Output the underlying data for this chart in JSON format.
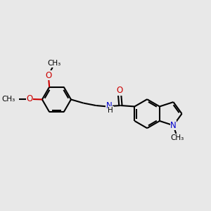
{
  "background_color": "#e8e8e8",
  "bond_color": "#000000",
  "bond_width": 1.5,
  "N_color": "#0000cd",
  "O_color": "#cc0000",
  "font_size": 8.5,
  "fig_size": [
    3.0,
    3.0
  ],
  "dpi": 100,
  "xlim": [
    0,
    10
  ],
  "ylim": [
    0,
    10
  ]
}
